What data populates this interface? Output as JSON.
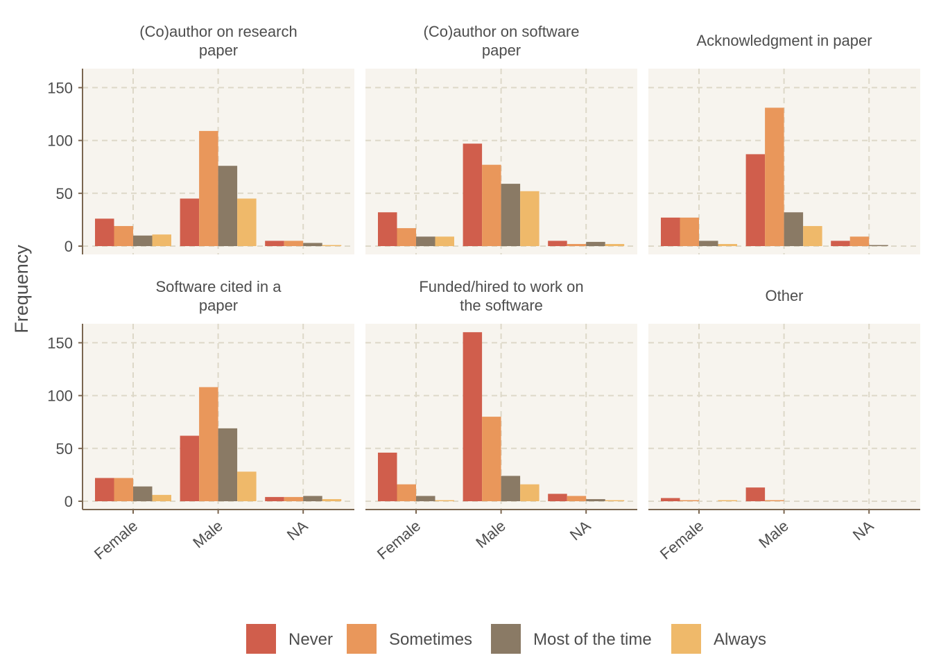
{
  "chart_data": {
    "type": "bar",
    "ylabel": "Frequency",
    "ylim": [
      0,
      168
    ],
    "yticks": [
      0,
      50,
      100,
      150
    ],
    "categories": [
      "Female",
      "Male",
      "NA"
    ],
    "legend": {
      "position": "bottom",
      "items": [
        {
          "name": "Never",
          "color": "#D05E4C"
        },
        {
          "name": "Sometimes",
          "color": "#E9975B"
        },
        {
          "name": "Most of the time",
          "color": "#8A7A65"
        },
        {
          "name": "Always",
          "color": "#EFB96A"
        }
      ]
    },
    "panels": [
      {
        "title": [
          "(Co)author on research",
          "paper"
        ],
        "series": [
          {
            "name": "Never",
            "values": [
              26,
              45,
              5
            ]
          },
          {
            "name": "Sometimes",
            "values": [
              19,
              109,
              5
            ]
          },
          {
            "name": "Most of the time",
            "values": [
              10,
              76,
              3
            ]
          },
          {
            "name": "Always",
            "values": [
              11,
              45,
              1
            ]
          }
        ]
      },
      {
        "title": [
          "(Co)author on software",
          "paper"
        ],
        "series": [
          {
            "name": "Never",
            "values": [
              32,
              97,
              5
            ]
          },
          {
            "name": "Sometimes",
            "values": [
              17,
              77,
              2
            ]
          },
          {
            "name": "Most of the time",
            "values": [
              9,
              59,
              4
            ]
          },
          {
            "name": "Always",
            "values": [
              9,
              52,
              2
            ]
          }
        ]
      },
      {
        "title": [
          "Acknowledgment in paper"
        ],
        "series": [
          {
            "name": "Never",
            "values": [
              27,
              87,
              5
            ]
          },
          {
            "name": "Sometimes",
            "values": [
              27,
              131,
              9
            ]
          },
          {
            "name": "Most of the time",
            "values": [
              5,
              32,
              1
            ]
          },
          {
            "name": "Always",
            "values": [
              2,
              19,
              0
            ]
          }
        ]
      },
      {
        "title": [
          "Software cited in a",
          "paper"
        ],
        "series": [
          {
            "name": "Never",
            "values": [
              22,
              62,
              4
            ]
          },
          {
            "name": "Sometimes",
            "values": [
              22,
              108,
              4
            ]
          },
          {
            "name": "Most of the time",
            "values": [
              14,
              69,
              5
            ]
          },
          {
            "name": "Always",
            "values": [
              6,
              28,
              2
            ]
          }
        ]
      },
      {
        "title": [
          "Funded/hired to work on",
          "the software"
        ],
        "series": [
          {
            "name": "Never",
            "values": [
              46,
              160,
              7
            ]
          },
          {
            "name": "Sometimes",
            "values": [
              16,
              80,
              5
            ]
          },
          {
            "name": "Most of the time",
            "values": [
              5,
              24,
              2
            ]
          },
          {
            "name": "Always",
            "values": [
              1,
              16,
              1
            ]
          }
        ]
      },
      {
        "title": [
          "Other"
        ],
        "series": [
          {
            "name": "Never",
            "values": [
              3,
              13,
              0
            ]
          },
          {
            "name": "Sometimes",
            "values": [
              1,
              1,
              0
            ]
          },
          {
            "name": "Most of the time",
            "values": [
              0,
              0,
              0
            ]
          },
          {
            "name": "Always",
            "values": [
              1,
              0,
              0
            ]
          }
        ]
      }
    ]
  }
}
